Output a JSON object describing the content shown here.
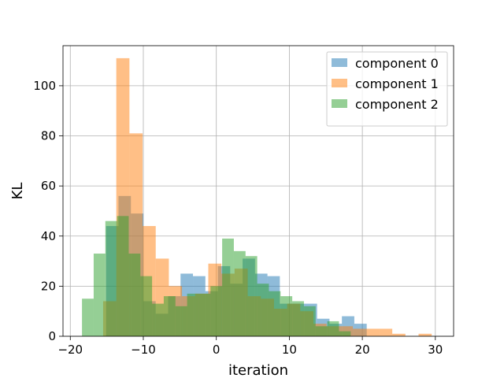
{
  "chart_data": {
    "type": "histogram",
    "title": "",
    "xlabel": "iteration",
    "ylabel": "KL",
    "xlim": [
      -21,
      32.5
    ],
    "ylim": [
      0,
      116
    ],
    "xticks": [
      -20,
      -10,
      0,
      10,
      20,
      30
    ],
    "yticks": [
      0,
      20,
      40,
      60,
      80,
      100
    ],
    "grid": true,
    "legend_position": "top-right",
    "series": [
      {
        "name": "component 0",
        "color": "#1f77b4",
        "bins": [
          {
            "x0": -15.1,
            "x1": -13.4,
            "y": 44
          },
          {
            "x0": -13.4,
            "x1": -11.7,
            "y": 56
          },
          {
            "x0": -11.7,
            "x1": -10.0,
            "y": 49
          },
          {
            "x0": -10.0,
            "x1": -8.3,
            "y": 14
          },
          {
            "x0": -8.3,
            "x1": -6.6,
            "y": 9
          },
          {
            "x0": -6.6,
            "x1": -4.9,
            "y": 16
          },
          {
            "x0": -4.9,
            "x1": -3.2,
            "y": 25
          },
          {
            "x0": -3.2,
            "x1": -1.5,
            "y": 24
          },
          {
            "x0": -1.5,
            "x1": 0.2,
            "y": 18
          },
          {
            "x0": 0.2,
            "x1": 1.9,
            "y": 28
          },
          {
            "x0": 1.9,
            "x1": 3.6,
            "y": 21
          },
          {
            "x0": 3.6,
            "x1": 5.3,
            "y": 31
          },
          {
            "x0": 5.3,
            "x1": 7.0,
            "y": 25
          },
          {
            "x0": 7.0,
            "x1": 8.7,
            "y": 24
          },
          {
            "x0": 8.7,
            "x1": 10.4,
            "y": 13
          },
          {
            "x0": 10.4,
            "x1": 12.1,
            "y": 13
          },
          {
            "x0": 12.1,
            "x1": 13.8,
            "y": 13
          },
          {
            "x0": 13.8,
            "x1": 15.5,
            "y": 7
          },
          {
            "x0": 15.5,
            "x1": 17.2,
            "y": 5
          },
          {
            "x0": 17.2,
            "x1": 18.9,
            "y": 8
          },
          {
            "x0": 18.9,
            "x1": 20.6,
            "y": 5
          }
        ]
      },
      {
        "name": "component 1",
        "color": "#ff7f0e",
        "bins": [
          {
            "x0": -15.5,
            "x1": -13.7,
            "y": 14
          },
          {
            "x0": -13.7,
            "x1": -11.9,
            "y": 111
          },
          {
            "x0": -11.9,
            "x1": -10.1,
            "y": 81
          },
          {
            "x0": -10.1,
            "x1": -8.3,
            "y": 44
          },
          {
            "x0": -8.3,
            "x1": -6.5,
            "y": 31
          },
          {
            "x0": -6.5,
            "x1": -4.7,
            "y": 20
          },
          {
            "x0": -4.7,
            "x1": -2.9,
            "y": 16
          },
          {
            "x0": -2.9,
            "x1": -1.1,
            "y": 17
          },
          {
            "x0": -1.1,
            "x1": 0.7,
            "y": 29
          },
          {
            "x0": 0.7,
            "x1": 2.5,
            "y": 25
          },
          {
            "x0": 2.5,
            "x1": 4.3,
            "y": 27
          },
          {
            "x0": 4.3,
            "x1": 6.1,
            "y": 16
          },
          {
            "x0": 6.1,
            "x1": 7.9,
            "y": 15
          },
          {
            "x0": 7.9,
            "x1": 9.7,
            "y": 11
          },
          {
            "x0": 9.7,
            "x1": 11.5,
            "y": 13
          },
          {
            "x0": 11.5,
            "x1": 13.3,
            "y": 10
          },
          {
            "x0": 13.3,
            "x1": 15.1,
            "y": 5
          },
          {
            "x0": 15.1,
            "x1": 16.9,
            "y": 4
          },
          {
            "x0": 16.9,
            "x1": 18.7,
            "y": 4
          },
          {
            "x0": 18.7,
            "x1": 20.5,
            "y": 3
          },
          {
            "x0": 20.5,
            "x1": 22.3,
            "y": 3
          },
          {
            "x0": 22.3,
            "x1": 24.1,
            "y": 3
          },
          {
            "x0": 24.1,
            "x1": 25.9,
            "y": 1
          },
          {
            "x0": 25.9,
            "x1": 27.7,
            "y": 0
          },
          {
            "x0": 27.7,
            "x1": 29.5,
            "y": 1
          }
        ]
      },
      {
        "name": "component 2",
        "color": "#2ca02c",
        "bins": [
          {
            "x0": -18.4,
            "x1": -16.8,
            "y": 15
          },
          {
            "x0": -16.8,
            "x1": -15.2,
            "y": 33
          },
          {
            "x0": -15.2,
            "x1": -13.6,
            "y": 46
          },
          {
            "x0": -13.6,
            "x1": -12.0,
            "y": 48
          },
          {
            "x0": -12.0,
            "x1": -10.4,
            "y": 33
          },
          {
            "x0": -10.4,
            "x1": -8.8,
            "y": 24
          },
          {
            "x0": -8.8,
            "x1": -7.2,
            "y": 13
          },
          {
            "x0": -7.2,
            "x1": -5.6,
            "y": 16
          },
          {
            "x0": -5.6,
            "x1": -4.0,
            "y": 12
          },
          {
            "x0": -4.0,
            "x1": -2.4,
            "y": 17
          },
          {
            "x0": -2.4,
            "x1": -0.8,
            "y": 17
          },
          {
            "x0": -0.8,
            "x1": 0.8,
            "y": 20
          },
          {
            "x0": 0.8,
            "x1": 2.4,
            "y": 39
          },
          {
            "x0": 2.4,
            "x1": 4.0,
            "y": 34
          },
          {
            "x0": 4.0,
            "x1": 5.6,
            "y": 32
          },
          {
            "x0": 5.6,
            "x1": 7.2,
            "y": 21
          },
          {
            "x0": 7.2,
            "x1": 8.8,
            "y": 18
          },
          {
            "x0": 8.8,
            "x1": 10.4,
            "y": 16
          },
          {
            "x0": 10.4,
            "x1": 12.0,
            "y": 14
          },
          {
            "x0": 12.0,
            "x1": 13.6,
            "y": 12
          },
          {
            "x0": 13.6,
            "x1": 15.2,
            "y": 4
          },
          {
            "x0": 15.2,
            "x1": 16.8,
            "y": 6
          },
          {
            "x0": 16.8,
            "x1": 18.4,
            "y": 2
          }
        ]
      }
    ]
  }
}
